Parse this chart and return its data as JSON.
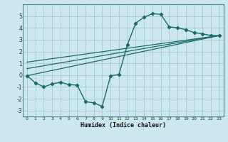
{
  "xlabel": "Humidex (Indice chaleur)",
  "background_color": "#cce8ee",
  "grid_color": "#aacdd6",
  "line_color": "#1a6b6b",
  "xlim": [
    -0.5,
    23.5
  ],
  "ylim": [
    -3.5,
    6.0
  ],
  "xticks": [
    0,
    1,
    2,
    3,
    4,
    5,
    6,
    7,
    8,
    9,
    10,
    11,
    12,
    13,
    14,
    15,
    16,
    17,
    18,
    19,
    20,
    21,
    22,
    23
  ],
  "yticks": [
    -3,
    -2,
    -1,
    0,
    1,
    2,
    3,
    4,
    5
  ],
  "main_x": [
    0,
    1,
    2,
    3,
    4,
    5,
    6,
    7,
    8,
    9,
    10,
    11,
    12,
    13,
    14,
    15,
    16,
    17,
    18,
    19,
    20,
    21,
    22,
    23
  ],
  "main_y": [
    -0.05,
    -0.65,
    -1.0,
    -0.75,
    -0.6,
    -0.8,
    -0.85,
    -2.25,
    -2.35,
    -2.65,
    -0.05,
    0.05,
    2.55,
    4.4,
    4.9,
    5.2,
    5.15,
    4.1,
    4.0,
    3.85,
    3.6,
    3.5,
    3.35,
    3.35
  ],
  "trend1_x": [
    0,
    23
  ],
  "trend1_y": [
    -0.05,
    3.35
  ],
  "trend2_x": [
    0,
    23
  ],
  "trend2_y": [
    0.55,
    3.35
  ],
  "trend3_x": [
    0,
    23
  ],
  "trend3_y": [
    1.1,
    3.35
  ]
}
